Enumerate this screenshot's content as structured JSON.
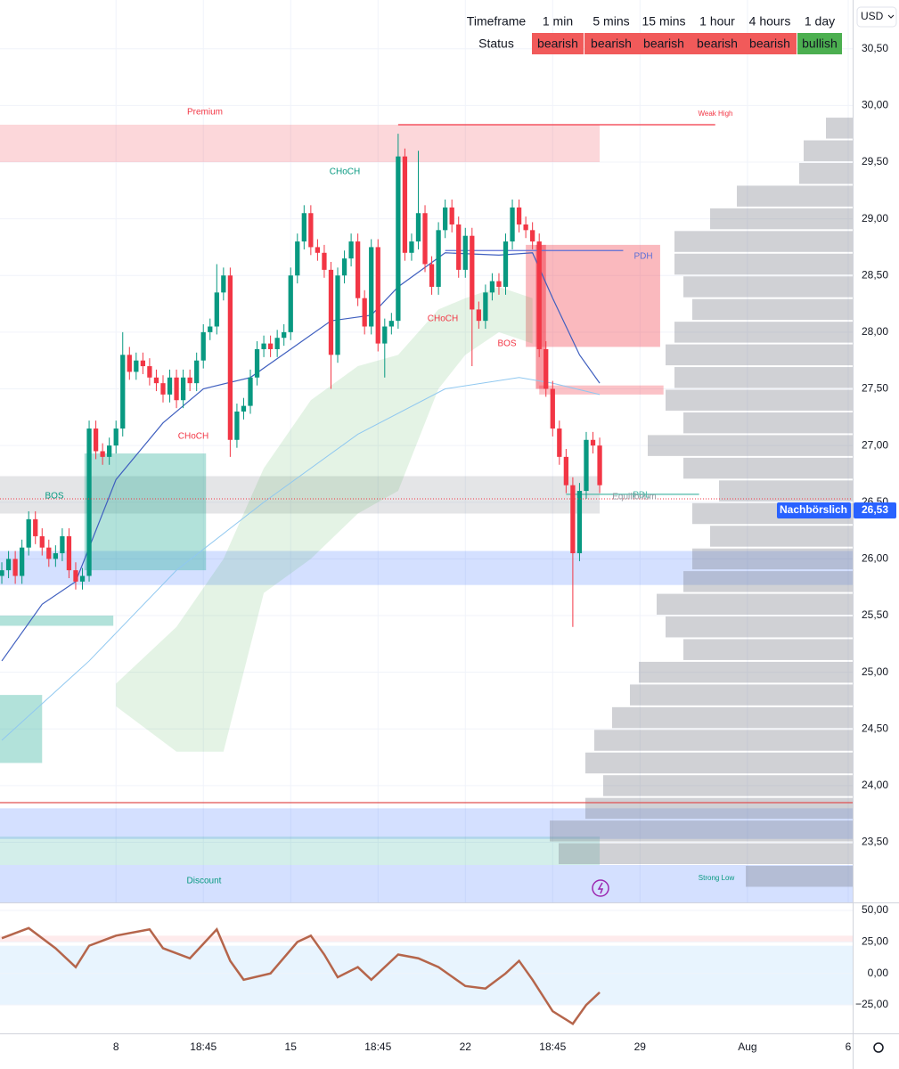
{
  "currency": "USD",
  "status_table": {
    "header": [
      "Timeframe",
      "1 min",
      "5 mins",
      "15 mins",
      "1 hour",
      "4 hours",
      "1 day"
    ],
    "row": [
      "Status",
      "bearish",
      "bearish",
      "bearish",
      "bearish",
      "bearish",
      "bullish"
    ],
    "cell_colors": [
      "#f15a5a",
      "#f15a5a",
      "#f15a5a",
      "#f15a5a",
      "#f15a5a",
      "#4caf50"
    ]
  },
  "chart_data": [
    {
      "type": "candlestick",
      "up_color": "#089981",
      "down_color": "#f23645",
      "xlim": [
        -0.27,
        126.66
      ],
      "ylim": [
        22.97,
        30.93
      ],
      "grid": true,
      "yticks": [
        {
          "value": 23.5,
          "label": "23,50"
        },
        {
          "value": 24,
          "label": "24,00"
        },
        {
          "value": 24.5,
          "label": "24,50"
        },
        {
          "value": 25,
          "label": "25,00"
        },
        {
          "value": 25.5,
          "label": "25,50"
        },
        {
          "value": 26,
          "label": "26,00"
        },
        {
          "value": 26.5,
          "label": "26,50"
        },
        {
          "value": 27,
          "label": "27,00"
        },
        {
          "value": 27.5,
          "label": "27,50"
        },
        {
          "value": 28,
          "label": "28,00"
        },
        {
          "value": 28.5,
          "label": "28,50"
        },
        {
          "value": 29,
          "label": "29,00"
        },
        {
          "value": 29.5,
          "label": "29,50"
        },
        {
          "value": 30,
          "label": "30,00"
        },
        {
          "value": 30.5,
          "label": "30,50"
        }
      ],
      "x": [
        0,
        1,
        2,
        3,
        4,
        5,
        6,
        7,
        8,
        9,
        10,
        11,
        12,
        13,
        14,
        15,
        16,
        17,
        18,
        19,
        20,
        21,
        22,
        23,
        24,
        25,
        26,
        27,
        28,
        29,
        30,
        31,
        32,
        33,
        34,
        35,
        36,
        37,
        38,
        39,
        40,
        41,
        42,
        43,
        44,
        45,
        46,
        47,
        48,
        49,
        50,
        51,
        52,
        53,
        54,
        55,
        56,
        57,
        58,
        59,
        60,
        61,
        62,
        63,
        64,
        65,
        66,
        67,
        68,
        69,
        70,
        71,
        72,
        73,
        74,
        75,
        76,
        77,
        78,
        79,
        80,
        81,
        82,
        83,
        84,
        85,
        86,
        87,
        88,
        89
      ],
      "ohlc": [
        [
          25.85,
          25.97,
          25.78,
          25.9
        ],
        [
          25.9,
          26.07,
          25.83,
          26.0
        ],
        [
          26.0,
          26.07,
          25.78,
          25.85
        ],
        [
          25.85,
          26.17,
          25.78,
          26.1
        ],
        [
          26.1,
          26.42,
          26.03,
          26.35
        ],
        [
          26.35,
          26.42,
          26.13,
          26.2
        ],
        [
          26.2,
          26.27,
          26.03,
          26.1
        ],
        [
          26.1,
          26.17,
          25.93,
          26.0
        ],
        [
          26.0,
          26.12,
          25.93,
          26.05
        ],
        [
          26.05,
          26.27,
          25.98,
          26.2
        ],
        [
          26.2,
          26.27,
          25.83,
          25.9
        ],
        [
          25.9,
          25.97,
          25.73,
          25.8
        ],
        [
          25.8,
          25.92,
          25.73,
          25.85
        ],
        [
          25.85,
          27.22,
          25.8,
          27.15
        ],
        [
          27.15,
          27.22,
          26.88,
          26.95
        ],
        [
          26.95,
          27.02,
          26.83,
          26.9
        ],
        [
          26.9,
          27.07,
          26.83,
          27.0
        ],
        [
          27.0,
          27.22,
          26.93,
          27.15
        ],
        [
          27.15,
          28.0,
          27.08,
          27.8
        ],
        [
          27.8,
          27.87,
          27.58,
          27.65
        ],
        [
          27.65,
          27.82,
          27.58,
          27.75
        ],
        [
          27.75,
          27.82,
          27.63,
          27.7
        ],
        [
          27.7,
          27.77,
          27.53,
          27.6
        ],
        [
          27.6,
          27.67,
          27.48,
          27.55
        ],
        [
          27.55,
          27.62,
          27.38,
          27.45
        ],
        [
          27.45,
          27.67,
          27.38,
          27.6
        ],
        [
          27.6,
          27.67,
          27.33,
          27.4
        ],
        [
          27.4,
          27.67,
          27.33,
          27.6
        ],
        [
          27.6,
          27.67,
          27.48,
          27.55
        ],
        [
          27.55,
          27.82,
          27.48,
          27.75
        ],
        [
          27.75,
          28.07,
          27.68,
          28.0
        ],
        [
          28.0,
          28.12,
          27.93,
          28.05
        ],
        [
          28.05,
          28.6,
          27.98,
          28.35
        ],
        [
          28.35,
          28.57,
          28.28,
          28.5
        ],
        [
          28.5,
          28.57,
          26.9,
          27.05
        ],
        [
          27.05,
          27.37,
          26.98,
          27.3
        ],
        [
          27.3,
          27.42,
          27.23,
          27.35
        ],
        [
          27.35,
          27.67,
          27.28,
          27.6
        ],
        [
          27.6,
          27.92,
          27.53,
          27.85
        ],
        [
          27.85,
          27.97,
          27.78,
          27.9
        ],
        [
          27.9,
          27.97,
          27.78,
          27.85
        ],
        [
          27.85,
          28.02,
          27.78,
          27.95
        ],
        [
          27.95,
          28.07,
          27.88,
          28.0
        ],
        [
          28.0,
          28.57,
          27.93,
          28.5
        ],
        [
          28.5,
          28.87,
          28.43,
          28.8
        ],
        [
          28.8,
          29.12,
          28.73,
          29.05
        ],
        [
          29.05,
          29.12,
          28.68,
          28.75
        ],
        [
          28.75,
          28.82,
          28.63,
          28.7
        ],
        [
          28.7,
          28.77,
          28.48,
          28.55
        ],
        [
          28.55,
          28.62,
          27.5,
          27.8
        ],
        [
          27.8,
          28.57,
          27.73,
          28.5
        ],
        [
          28.5,
          28.72,
          28.43,
          28.65
        ],
        [
          28.65,
          28.87,
          28.58,
          28.8
        ],
        [
          28.8,
          28.87,
          28.23,
          28.3
        ],
        [
          28.3,
          28.37,
          27.98,
          28.05
        ],
        [
          28.05,
          28.82,
          27.98,
          28.75
        ],
        [
          28.75,
          28.82,
          27.83,
          27.9
        ],
        [
          27.9,
          28.12,
          27.6,
          28.05
        ],
        [
          28.05,
          28.17,
          27.98,
          28.1
        ],
        [
          28.1,
          29.75,
          28.03,
          29.55
        ],
        [
          29.55,
          29.62,
          28.63,
          28.7
        ],
        [
          28.7,
          28.87,
          28.63,
          28.8
        ],
        [
          28.8,
          29.6,
          28.73,
          29.05
        ],
        [
          29.05,
          29.12,
          28.53,
          28.6
        ],
        [
          28.6,
          28.67,
          28.33,
          28.4
        ],
        [
          28.4,
          28.97,
          28.33,
          28.9
        ],
        [
          28.9,
          29.17,
          28.83,
          29.1
        ],
        [
          29.1,
          29.17,
          28.88,
          28.95
        ],
        [
          28.95,
          29.02,
          28.48,
          28.55
        ],
        [
          28.55,
          28.92,
          28.48,
          28.85
        ],
        [
          28.85,
          28.92,
          27.7,
          28.2
        ],
        [
          28.2,
          28.27,
          28.03,
          28.1
        ],
        [
          28.1,
          28.42,
          28.03,
          28.35
        ],
        [
          28.35,
          28.52,
          28.28,
          28.45
        ],
        [
          28.45,
          28.52,
          28.33,
          28.4
        ],
        [
          28.4,
          28.87,
          28.33,
          28.8
        ],
        [
          28.8,
          29.17,
          28.73,
          29.1
        ],
        [
          29.1,
          29.17,
          28.88,
          28.95
        ],
        [
          28.95,
          29.02,
          28.83,
          28.9
        ],
        [
          28.9,
          28.97,
          28.73,
          28.8
        ],
        [
          28.8,
          28.87,
          27.78,
          27.85
        ],
        [
          27.85,
          27.92,
          27.43,
          27.5
        ],
        [
          27.5,
          27.57,
          27.08,
          27.15
        ],
        [
          27.15,
          27.22,
          26.83,
          26.9
        ],
        [
          26.9,
          26.97,
          26.58,
          26.65
        ],
        [
          26.65,
          26.72,
          25.4,
          26.05
        ],
        [
          26.05,
          26.67,
          25.98,
          26.6
        ],
        [
          26.6,
          27.12,
          26.53,
          27.05
        ],
        [
          27.05,
          27.12,
          26.93,
          27.0
        ],
        [
          27.0,
          27.07,
          26.58,
          26.65
        ]
      ],
      "cloud": {
        "color": "rgba(76,175,80,0.15)",
        "x": [
          17,
          26,
          33,
          39,
          46,
          53,
          59,
          65,
          69,
          74,
          79
        ],
        "upper": [
          24.9,
          25.4,
          26.0,
          26.8,
          27.4,
          27.7,
          27.8,
          28.2,
          28.3,
          28.4,
          28.3
        ],
        "lower": [
          24.7,
          24.3,
          24.3,
          25.7,
          26.0,
          26.4,
          26.6,
          27.5,
          27.8,
          28.0,
          27.9
        ]
      },
      "lines": [
        {
          "color": "#3f5fbf",
          "x": [
            0,
            6,
            11,
            17,
            24,
            30,
            37,
            43,
            49,
            55,
            59,
            66,
            74,
            79,
            82,
            86,
            89
          ],
          "values": [
            25.1,
            25.6,
            25.8,
            26.7,
            27.2,
            27.5,
            27.6,
            27.85,
            28.1,
            28.15,
            28.4,
            28.7,
            28.68,
            28.7,
            28.3,
            27.8,
            27.55
          ]
        },
        {
          "color": "#90c8f0",
          "x": [
            0,
            13,
            26,
            39,
            53,
            66,
            77,
            82,
            89
          ],
          "values": [
            24.4,
            25.1,
            25.9,
            26.5,
            27.1,
            27.5,
            27.6,
            27.55,
            27.45
          ]
        }
      ],
      "zones": [
        {
          "x": [
            -0.27,
            89
          ],
          "y": [
            29.5,
            29.83
          ],
          "color": "rgba(242,54,69,0.2)"
        },
        {
          "x": [
            -0.27,
            89
          ],
          "y": [
            26.4,
            26.73
          ],
          "color": "rgba(120,123,134,0.2)"
        },
        {
          "x": [
            -0.27,
            126.66
          ],
          "y": [
            25.77,
            26.07
          ],
          "color": "rgba(41,98,255,0.2)"
        },
        {
          "x": [
            12.3,
            30.4
          ],
          "y": [
            25.9,
            26.93
          ],
          "color": "rgba(34,171,148,0.35)"
        },
        {
          "x": [
            -0.27,
            16.6
          ],
          "y": [
            25.41,
            25.5
          ],
          "color": "rgba(34,171,148,0.35)"
        },
        {
          "x": [
            -0.27,
            6
          ],
          "y": [
            24.2,
            24.8
          ],
          "color": "rgba(34,171,148,0.35)"
        },
        {
          "x": [
            78,
            98
          ],
          "y": [
            27.87,
            28.77
          ],
          "color": "rgba(242,54,69,0.35)"
        },
        {
          "x": [
            79.5,
            81
          ],
          "y": [
            27.5,
            28.77
          ],
          "color": "rgba(242,54,69,0.5)"
        },
        {
          "x": [
            80,
            98.5
          ],
          "y": [
            27.45,
            27.53
          ],
          "color": "rgba(242,54,69,0.3)"
        },
        {
          "x": [
            -0.27,
            126.66
          ],
          "y": [
            23.53,
            23.8
          ],
          "color": "rgba(41,98,255,0.2)"
        },
        {
          "x": [
            -0.27,
            89
          ],
          "y": [
            23.3,
            23.55
          ],
          "color": "rgba(34,171,148,0.2)"
        },
        {
          "x": [
            -0.27,
            126.66
          ],
          "y": [
            22.97,
            23.3
          ],
          "color": "rgba(41,98,255,0.2)"
        }
      ],
      "levels": [
        {
          "x": [
            59,
            106.2
          ],
          "y": 29.83,
          "color": "#f23645"
        },
        {
          "x": [
            66,
            92.5
          ],
          "y": 28.72,
          "color": "#5b6fd6"
        },
        {
          "x": [
            84,
            103.8
          ],
          "y": 26.57,
          "color": "#4fb8a8"
        },
        {
          "x": [
            -0.27,
            126.66
          ],
          "y": 23.85,
          "color": "#e05050"
        }
      ],
      "volume_profile": {
        "color": "rgba(120,123,134,0.35)",
        "levels": [
          29.8,
          29.6,
          29.4,
          29.2,
          29.0,
          28.8,
          28.6,
          28.4,
          28.2,
          28.0,
          27.8,
          27.6,
          27.4,
          27.2,
          27.0,
          26.8,
          26.6,
          26.4,
          26.2,
          26.0,
          25.8,
          25.6,
          25.4,
          25.2,
          25.0,
          24.8,
          24.6,
          24.4,
          24.2,
          24.0,
          23.8,
          23.6,
          23.4,
          23.2
        ],
        "values": [
          30,
          55,
          60,
          130,
          160,
          200,
          200,
          190,
          180,
          200,
          210,
          200,
          210,
          190,
          230,
          190,
          150,
          180,
          160,
          180,
          190,
          220,
          210,
          190,
          240,
          250,
          270,
          290,
          300,
          280,
          300,
          340,
          330,
          120
        ]
      },
      "annotations": [
        "Premium",
        "Weak High",
        "CHoCH",
        "CHoCH",
        "CHoCH",
        "BOS",
        "BOS",
        "PDH",
        "PDL",
        "Equilibrium",
        "Discount",
        "Strong Low"
      ],
      "last_price": {
        "value": 26.53,
        "label": "26,53"
      },
      "session_label": "Nachbörslich"
    },
    {
      "type": "line",
      "color": "#b5654b",
      "xlim": [
        -0.27,
        126.66
      ],
      "ylim": [
        -47.6,
        56.4
      ],
      "yticks": [
        {
          "value": 50,
          "label": "50,00"
        },
        {
          "value": 25,
          "label": "25,00"
        },
        {
          "value": 0,
          "label": "0,00"
        },
        {
          "value": -25,
          "label": "−25,00"
        }
      ],
      "xticks": [
        {
          "value": 17,
          "label": "8"
        },
        {
          "value": 30,
          "label": "18:45"
        },
        {
          "value": 43,
          "label": "15"
        },
        {
          "value": 56,
          "label": "18:45"
        },
        {
          "value": 69,
          "label": "22"
        },
        {
          "value": 82,
          "label": "18:45"
        },
        {
          "value": 95,
          "label": "29"
        },
        {
          "value": 111,
          "label": "Aug"
        },
        {
          "value": 126,
          "label": "6"
        }
      ],
      "zones": [
        {
          "y": [
            25,
            30
          ],
          "color": "rgba(242,54,69,0.1)"
        },
        {
          "y": [
            -25,
            22
          ],
          "color": "rgba(33,150,243,0.1)"
        }
      ],
      "x": [
        0,
        4,
        8,
        11,
        13,
        17,
        22,
        24,
        28,
        32,
        34,
        36,
        40,
        44,
        46,
        48,
        50,
        53,
        55,
        59,
        62,
        65,
        69,
        72,
        75,
        77,
        79,
        82,
        85,
        87,
        89
      ],
      "values": [
        28,
        36,
        20,
        5,
        22,
        30,
        35,
        20,
        12,
        35,
        10,
        -5,
        0,
        25,
        30,
        15,
        -3,
        5,
        -5,
        15,
        12,
        5,
        -10,
        -12,
        0,
        10,
        -5,
        -30,
        -40,
        -25,
        -15
      ]
    }
  ]
}
